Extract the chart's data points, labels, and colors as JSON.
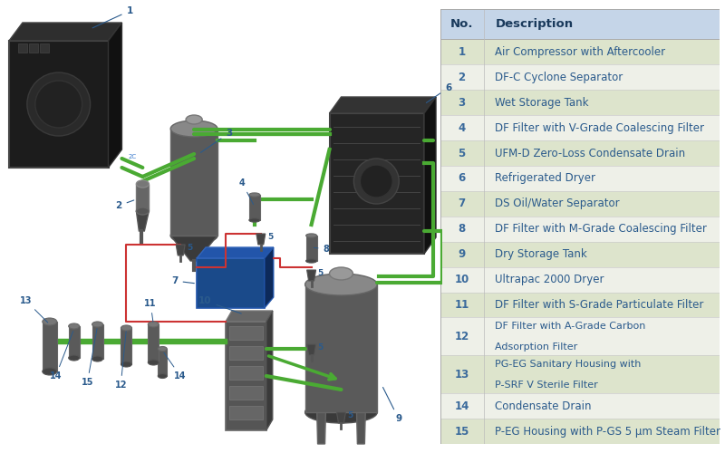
{
  "table_header": [
    "No.",
    "Description"
  ],
  "table_rows": [
    [
      "1",
      "Air Compressor with Aftercooler",
      false
    ],
    [
      "2",
      "DF-C Cyclone Separator",
      false
    ],
    [
      "3",
      "Wet Storage Tank",
      false
    ],
    [
      "4",
      "DF Filter with V-Grade Coalescing Filter",
      false
    ],
    [
      "5",
      "UFM-D Zero-Loss Condensate Drain",
      false
    ],
    [
      "6",
      "Refrigerated Dryer",
      false
    ],
    [
      "7",
      "DS Oil/Water Separator",
      false
    ],
    [
      "8",
      "DF Filter with M-Grade Coalescing Filter",
      false
    ],
    [
      "9",
      "Dry Storage Tank",
      false
    ],
    [
      "10",
      "Ultrapac 2000 Dryer",
      false
    ],
    [
      "11",
      "DF Filter with S-Grade Particulate Filter",
      false
    ],
    [
      "12",
      "DF Filter with A-Grade Carbon\nAdsorption Filter",
      true
    ],
    [
      "13",
      "PG-EG Sanitary Housing with\nP-SRF V Sterile Filter",
      true
    ],
    [
      "14",
      "Condensate Drain",
      false
    ],
    [
      "15",
      "P-EG Housing with P-GS 5 μm Steam Filter",
      false
    ]
  ],
  "header_bg": "#c5d5e8",
  "row_bg_odd": "#dde4cc",
  "row_bg_even": "#eef0e8",
  "header_text_color": "#1a3a5c",
  "row_text_color": "#2a5a8c",
  "num_col_color": "#3a6a9c",
  "font_size_header": 9.5,
  "font_size_row": 8.5,
  "bg_color": "#ffffff",
  "green": "#4aaa33",
  "red_pipe": "#cc3333",
  "dark": "#2a2a2a",
  "mid": "#4a4a4a",
  "light": "#888888",
  "blue_sep": "#1a4a8a"
}
